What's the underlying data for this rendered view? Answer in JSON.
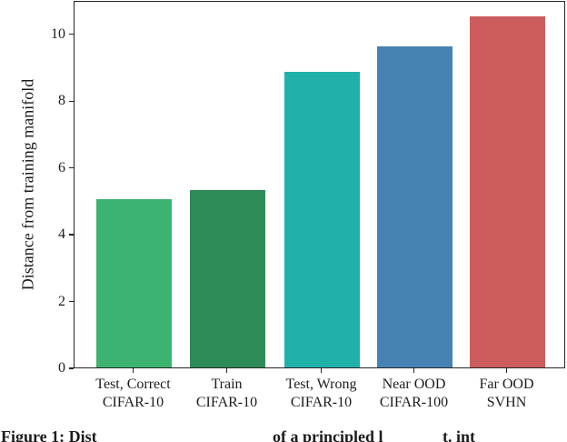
{
  "chart_data": {
    "type": "bar",
    "categories": [
      [
        "Test, Correct",
        "CIFAR-10"
      ],
      [
        "Train",
        "CIFAR-10"
      ],
      [
        "Test, Wrong",
        "CIFAR-10"
      ],
      [
        "Near OOD",
        "CIFAR-100"
      ],
      [
        "Far OOD",
        "SVHN"
      ]
    ],
    "values": [
      5.05,
      5.3,
      8.85,
      9.6,
      10.5
    ],
    "bar_colors": [
      "#3CB371",
      "#2E8B57",
      "#20B2AA",
      "#4682B4",
      "#CD5C5C"
    ],
    "title": "",
    "xlabel": "",
    "ylabel": "Distance from training manifold",
    "ylim": [
      0,
      11
    ],
    "yticks": [
      0,
      2,
      4,
      6,
      8,
      10
    ],
    "grid": false,
    "legend_position": "none"
  },
  "caption": {
    "fragments": [
      "Figure 1: Dist",
      "of a principled l",
      "t. int"
    ]
  },
  "colors": {
    "spine": "#262626",
    "text": "#1c1c1c",
    "background": "#ffffff"
  }
}
